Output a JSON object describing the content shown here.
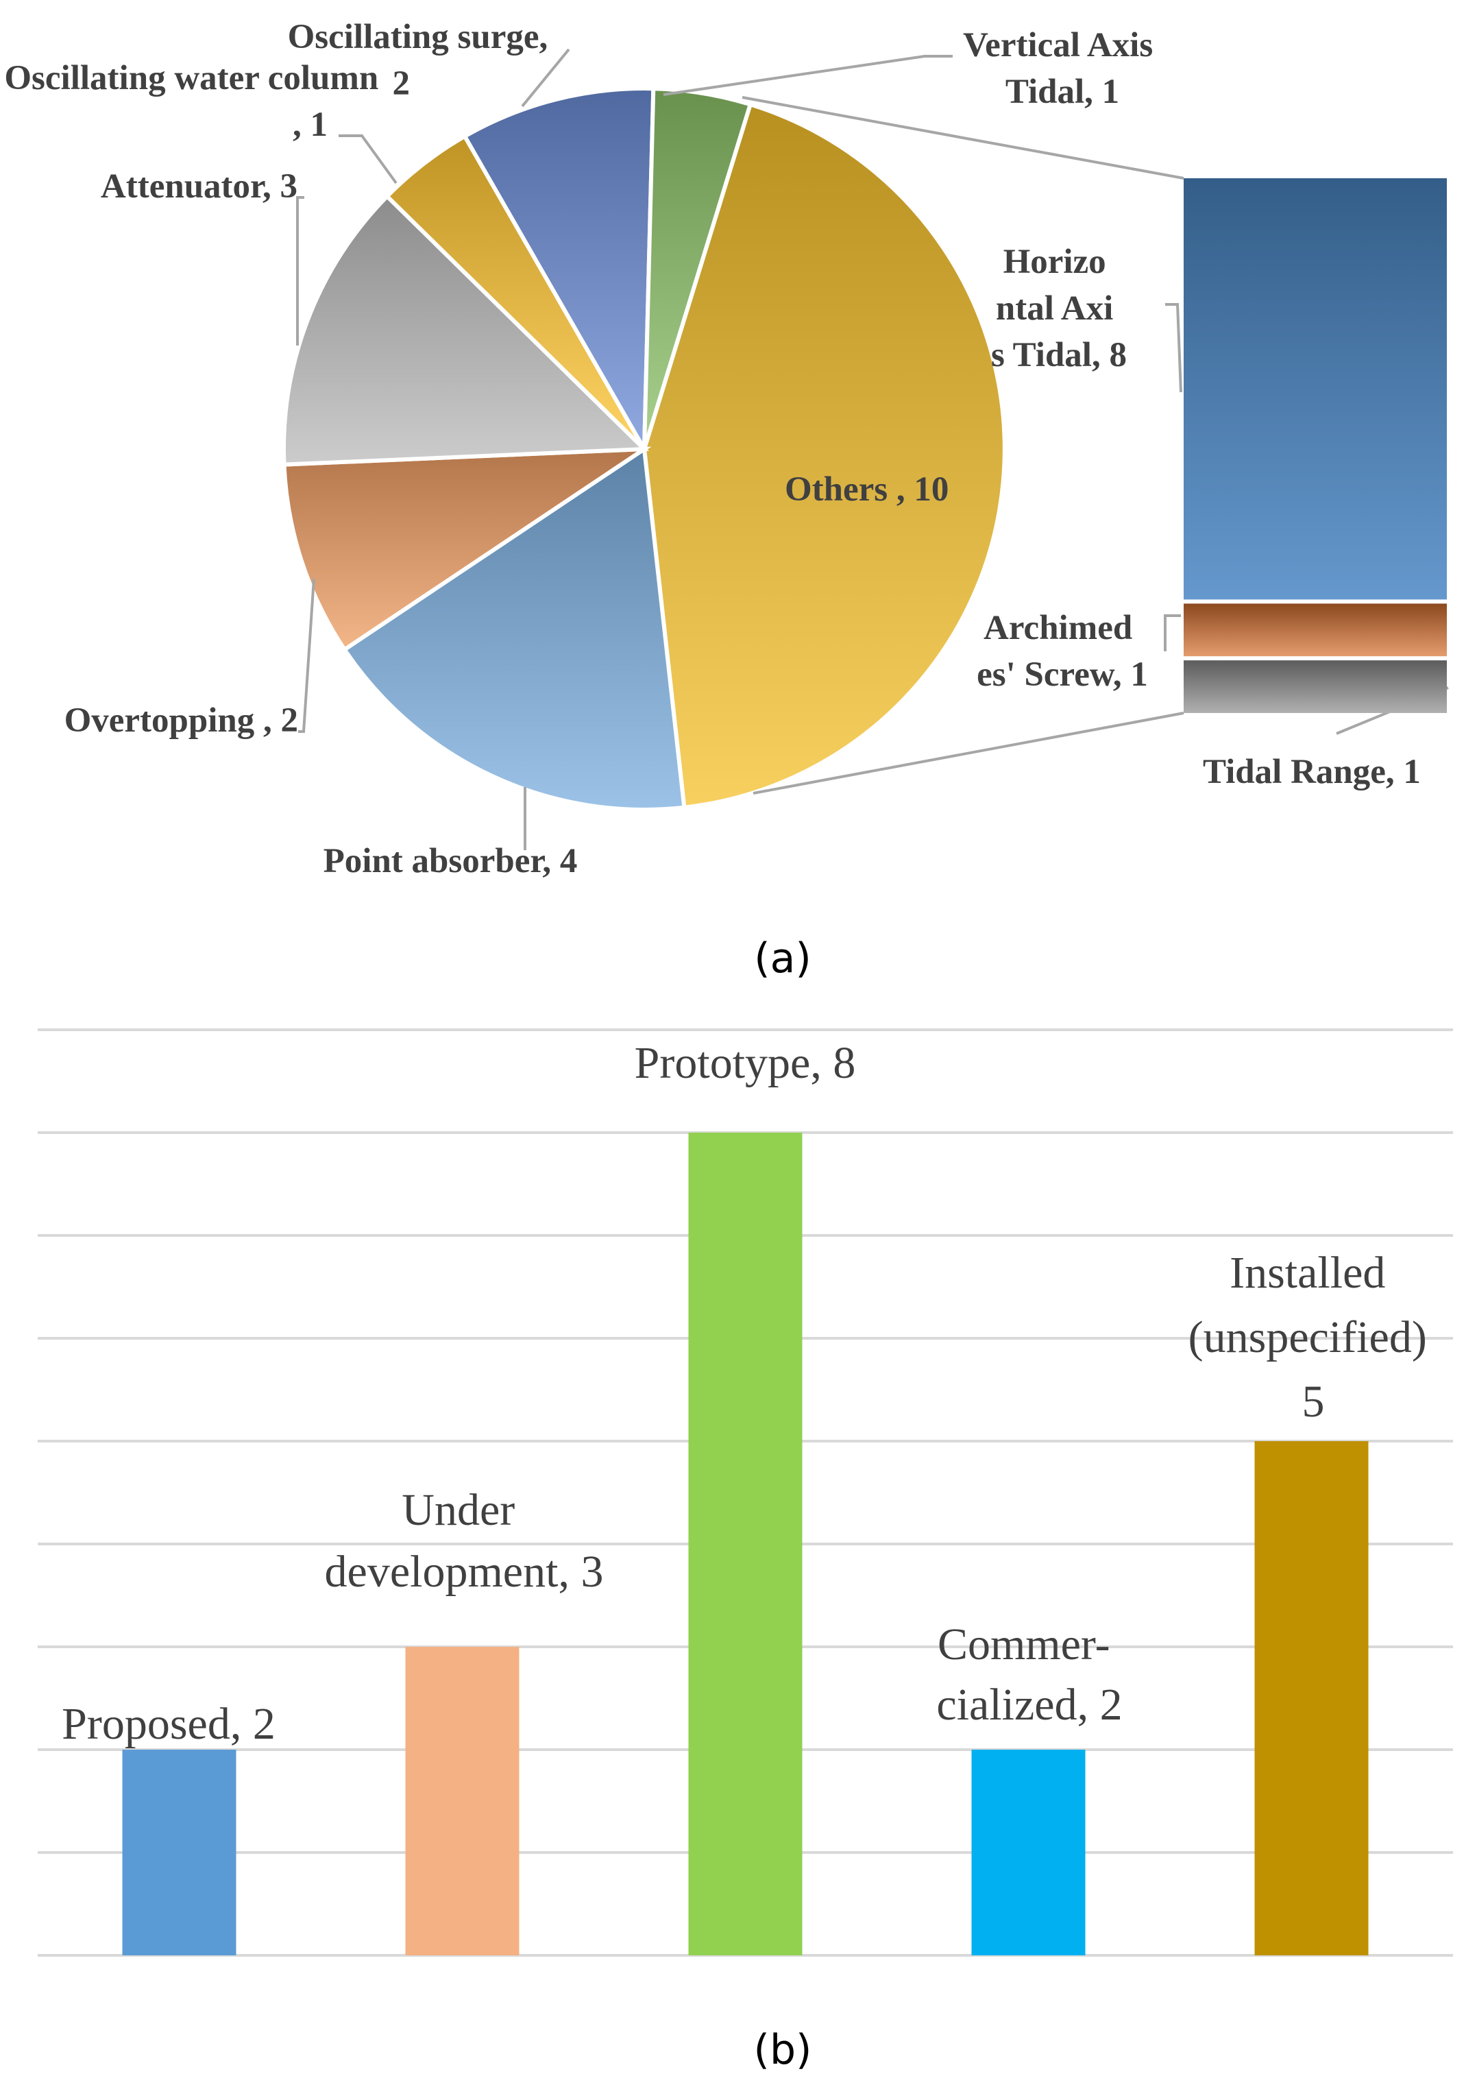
{
  "chart_data": [
    {
      "type": "pie",
      "caption": "(a)",
      "slices": [
        {
          "name": "Others ",
          "value": 10,
          "label": "Others , 10",
          "color": "#F5C02B"
        },
        {
          "name": "Point absorber",
          "value": 4,
          "label": "Point absorber, 4",
          "color": "#7BAEDF"
        },
        {
          "name": "Overtopping ",
          "value": 2,
          "label": "Overtopping , 2",
          "color": "#EF9D62"
        },
        {
          "name": "Attenuator",
          "value": 3,
          "label": "Attenuator, 3",
          "color": "#BBBBBB"
        },
        {
          "name": "Oscillating water column",
          "value": 1,
          "label": "Oscillating water column, 1",
          "color": "#FFC530"
        },
        {
          "name": "Oscillating surge",
          "value": 2,
          "label": "Oscillating surge, 2",
          "color": "#6B8CD5"
        },
        {
          "name": "Vertical Axis Tidal",
          "value": 1,
          "label": "Vertical Axis Tidal, 1",
          "color": "#8CC168"
        }
      ],
      "breakdown_of": "Others ",
      "breakdown": [
        {
          "name": "Horizontal Axis Tidal",
          "value": 8,
          "label": "Horizontal Axis Tidal, 8",
          "color": "#4A86C4"
        },
        {
          "name": "Archimedes' Screw",
          "value": 1,
          "label": "Archimedes' Screw, 1",
          "color": "#D8712F"
        },
        {
          "name": "Tidal Range",
          "value": 1,
          "label": "Tidal Range, 1",
          "color": "#8E8E8E"
        }
      ]
    },
    {
      "type": "bar",
      "caption": "(b)",
      "categories": [
        "Proposed",
        "Under development",
        "Prototype",
        "Commer-cialized",
        "Installed (unspecified)"
      ],
      "values": [
        2,
        3,
        8,
        2,
        5
      ],
      "data_labels": [
        "Proposed, 2",
        "Under development, 3",
        "Prototype, 8",
        "Commer-cialized, 2",
        "Installed (unspecified) 5"
      ],
      "colors": [
        "#5B9BD5",
        "#F4B183",
        "#92D050",
        "#00B0F0",
        "#BF9000"
      ],
      "ylim": [
        0,
        9
      ],
      "grid": true,
      "legend": "none"
    }
  ]
}
